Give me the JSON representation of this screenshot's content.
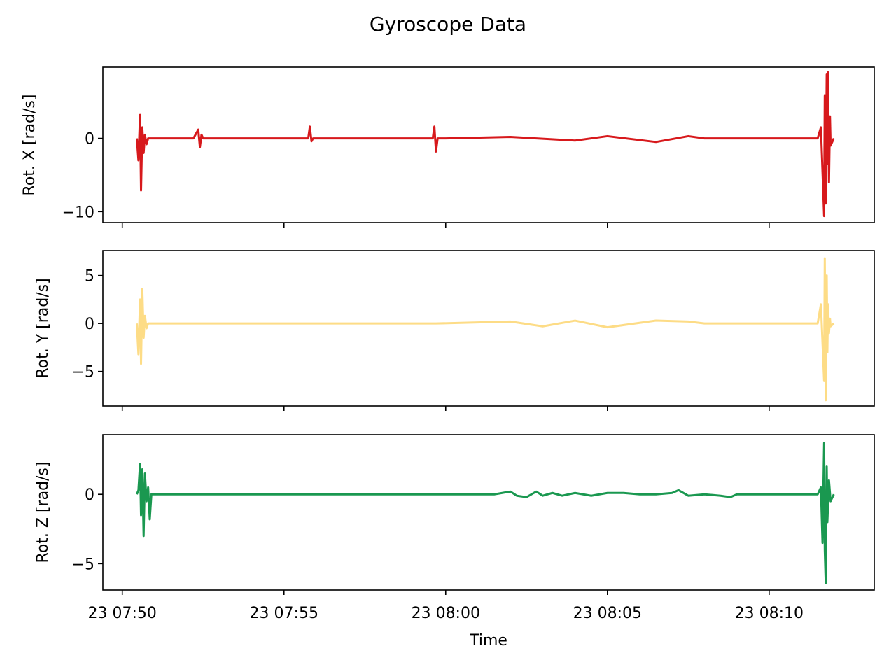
{
  "title": "Gyroscope Data",
  "chart_data": {
    "type": "line",
    "title": "Gyroscope Data",
    "xlabel": "Time",
    "x_ticks": [
      "23 07:50",
      "23 07:55",
      "23 08:00",
      "23 08:05",
      "23 08:10"
    ],
    "x_tick_minutes": [
      0,
      5,
      10,
      15,
      20
    ],
    "xlim": [
      -0.6,
      23.25
    ],
    "panels": [
      {
        "ylabel": "Rot. X [rad/s]",
        "ylim": [
          -11.5,
          9.7
        ],
        "y_ticks": [
          0,
          -10
        ],
        "y_tick_labels": [
          "0",
          "−10"
        ],
        "color": "#d7191c",
        "series_name": "",
        "x": [
          0.45,
          0.5,
          0.55,
          0.58,
          0.62,
          0.66,
          0.7,
          0.75,
          0.8,
          0.9,
          1.0,
          1.5,
          2.2,
          2.35,
          2.4,
          2.45,
          2.5,
          5.0,
          5.75,
          5.8,
          5.85,
          5.9,
          7.0,
          9.6,
          9.65,
          9.7,
          9.75,
          10.0,
          12.0,
          14.0,
          15.0,
          16.5,
          17.5,
          18.0,
          19.0,
          21.5,
          21.6,
          21.7,
          21.72,
          21.75,
          21.78,
          21.8,
          21.82,
          21.85,
          21.88,
          21.9,
          22.0
        ],
        "y": [
          0.0,
          -3.0,
          3.2,
          -7.1,
          1.5,
          -2.0,
          0.5,
          -0.8,
          0.0,
          0.0,
          0.0,
          0.0,
          0.0,
          1.2,
          -1.2,
          0.5,
          0.0,
          0.0,
          0.0,
          1.6,
          -0.4,
          0.0,
          0.0,
          0.0,
          1.6,
          -1.8,
          0.0,
          0.0,
          0.2,
          -0.3,
          0.3,
          -0.5,
          0.3,
          0.0,
          0.0,
          0.0,
          1.5,
          -10.6,
          5.8,
          -8.9,
          8.7,
          -3.5,
          9.0,
          -6.0,
          3.0,
          -1.0,
          0.0
        ]
      },
      {
        "ylabel": "Rot. Y [rad/s]",
        "ylim": [
          -8.6,
          7.6
        ],
        "y_ticks": [
          5,
          0,
          -5
        ],
        "y_tick_labels": [
          "5",
          "0",
          "−5"
        ],
        "color": "#fddc86",
        "series_name": "",
        "x": [
          0.45,
          0.5,
          0.55,
          0.58,
          0.62,
          0.66,
          0.7,
          0.75,
          0.8,
          1.0,
          2.4,
          5.8,
          9.7,
          12.0,
          13.0,
          14.0,
          15.0,
          16.5,
          17.5,
          18.0,
          19.0,
          21.5,
          21.6,
          21.7,
          21.72,
          21.75,
          21.78,
          21.8,
          21.82,
          21.85,
          21.88,
          21.9,
          22.0
        ],
        "y": [
          0.0,
          -3.2,
          2.5,
          -4.2,
          3.6,
          -1.5,
          0.8,
          -0.5,
          0.0,
          0.0,
          0.0,
          0.0,
          0.0,
          0.2,
          -0.3,
          0.3,
          -0.4,
          0.3,
          0.2,
          0.0,
          0.0,
          0.0,
          2.0,
          -6.0,
          6.8,
          -8.0,
          5.0,
          -3.0,
          2.0,
          -1.0,
          0.5,
          -0.3,
          0.0
        ]
      },
      {
        "ylabel": "Rot. Z [rad/s]",
        "ylim": [
          -6.9,
          4.3
        ],
        "y_ticks": [
          0,
          -5
        ],
        "y_tick_labels": [
          "0",
          "−5"
        ],
        "color": "#1a9850",
        "series_name": "",
        "x": [
          0.45,
          0.5,
          0.55,
          0.58,
          0.62,
          0.66,
          0.7,
          0.75,
          0.8,
          0.85,
          0.9,
          1.0,
          5.0,
          10.0,
          11.5,
          12.0,
          12.2,
          12.5,
          12.8,
          13.0,
          13.3,
          13.6,
          14.0,
          14.5,
          15.0,
          15.5,
          16.0,
          16.5,
          17.0,
          17.2,
          17.5,
          18.0,
          18.5,
          18.8,
          19.0,
          21.5,
          21.6,
          21.65,
          21.7,
          21.72,
          21.75,
          21.78,
          21.8,
          21.85,
          21.9,
          22.0
        ],
        "y": [
          0.0,
          0.3,
          2.2,
          -1.5,
          1.8,
          -3.0,
          1.5,
          -0.5,
          0.5,
          -1.8,
          0.0,
          0.0,
          0.0,
          0.0,
          0.0,
          0.2,
          -0.1,
          -0.2,
          0.2,
          -0.1,
          0.1,
          -0.1,
          0.1,
          -0.1,
          0.1,
          0.1,
          0.0,
          0.0,
          0.1,
          0.3,
          -0.1,
          0.0,
          -0.1,
          -0.2,
          0.0,
          0.0,
          0.5,
          -3.5,
          3.7,
          -4.0,
          -6.4,
          2.0,
          -2.0,
          1.0,
          -0.5,
          0.0
        ]
      }
    ]
  }
}
